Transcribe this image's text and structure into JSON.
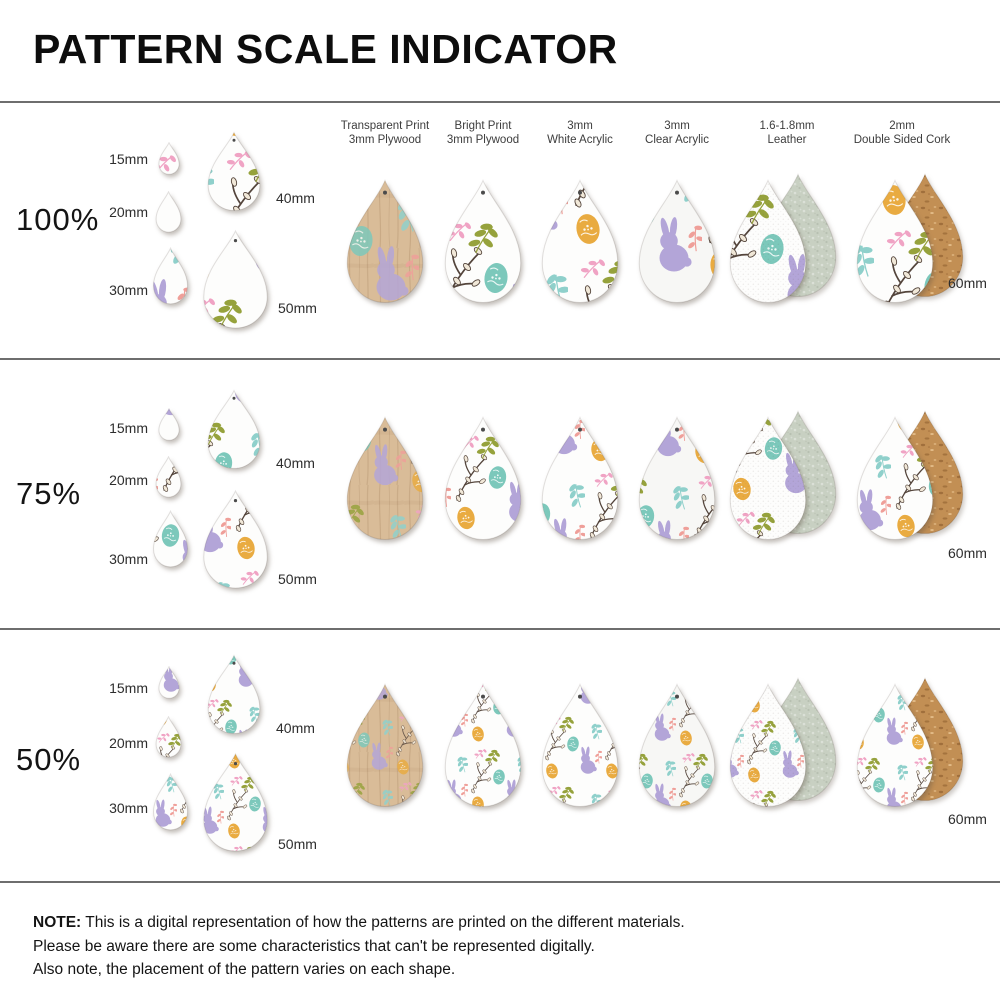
{
  "title": "PATTERN SCALE INDICATOR",
  "columns": [
    {
      "line1": "Transparent Print",
      "line2": "3mm Plywood"
    },
    {
      "line1": "Bright Print",
      "line2": "3mm Plywood"
    },
    {
      "line1": "3mm",
      "line2": "White Acrylic"
    },
    {
      "line1": "3mm",
      "line2": "Clear Acrylic"
    },
    {
      "line1": "1.6-1.8mm",
      "line2": "Leather"
    },
    {
      "line1": "2mm",
      "line2": "Double Sided Cork"
    }
  ],
  "rows": [
    {
      "label": "100%",
      "scale": 1.0,
      "sizes": [
        "15mm",
        "20mm",
        "30mm",
        "40mm",
        "50mm"
      ],
      "big": "60mm"
    },
    {
      "label": "75%",
      "scale": 0.75,
      "sizes": [
        "15mm",
        "20mm",
        "30mm",
        "40mm",
        "50mm"
      ],
      "big": "60mm"
    },
    {
      "label": "50%",
      "scale": 0.5,
      "sizes": [
        "15mm",
        "20mm",
        "30mm",
        "40mm",
        "50mm"
      ],
      "big": "60mm"
    }
  ],
  "note": {
    "bold": "NOTE:",
    "line1": " This is a digital representation of how the patterns are printed on the different materials.",
    "line2": "Please be aware there are some characteristics that can't be represented digitally.",
    "line3": "Also note, the placement of the pattern varies on each shape."
  },
  "palette": {
    "purple": "#b3a5d8",
    "pink": "#f0a3c4",
    "pink_soft": "#ef9f99",
    "gold": "#e9ab41",
    "teal": "#7cc8bb",
    "teal_leaf": "#8fd0cb",
    "olive": "#96a23c",
    "branch": "#53443b",
    "bud": "#f1e8d8"
  },
  "materials": {
    "wood": "#d9bc98",
    "white": "#fdfdfc",
    "clear_acrylic": "#f7f7f5",
    "leather_back": "#c8d0c2",
    "cork": "#c28f54"
  }
}
